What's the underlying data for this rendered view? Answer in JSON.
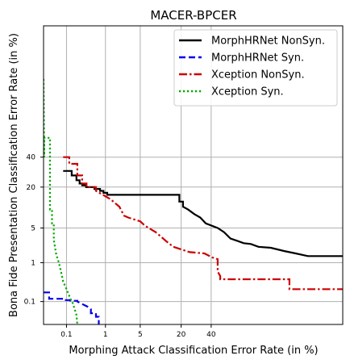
{
  "chart_data": {
    "type": "line",
    "title": "MACER-BPCER",
    "xlabel": "Morphing Attack Classification Error Rate (in %)",
    "ylabel": "Bona Fide Presentation Classification Error Rate (in %)",
    "axis_scale": "probit",
    "xlim": [
      0.02,
      99
    ],
    "ylim": [
      0.02,
      99
    ],
    "xticks": [
      0.1,
      1,
      5,
      20,
      40
    ],
    "xtick_labels": [
      "0.1",
      "1",
      "5",
      "20",
      "40"
    ],
    "yticks": [
      0.1,
      1,
      5,
      20,
      40
    ],
    "ytick_labels": [
      "0.1",
      "1",
      "5",
      "20",
      "40"
    ],
    "grid": true,
    "legend_position": "top-right",
    "series": [
      {
        "name": "MorphHRNet NonSyn.",
        "color": "#000000",
        "dash": "solid",
        "points": [
          [
            0.08,
            30
          ],
          [
            0.14,
            30
          ],
          [
            0.14,
            27
          ],
          [
            0.19,
            27
          ],
          [
            0.19,
            24
          ],
          [
            0.23,
            24
          ],
          [
            0.23,
            22
          ],
          [
            0.27,
            22
          ],
          [
            0.27,
            21
          ],
          [
            0.34,
            21
          ],
          [
            0.34,
            20
          ],
          [
            0.55,
            20
          ],
          [
            0.55,
            19
          ],
          [
            0.75,
            19
          ],
          [
            0.75,
            18
          ],
          [
            0.9,
            18
          ],
          [
            0.9,
            17
          ],
          [
            1.1,
            17
          ],
          [
            1.1,
            16
          ],
          [
            19,
            16
          ],
          [
            19,
            13
          ],
          [
            21,
            13
          ],
          [
            21,
            11
          ],
          [
            24,
            10
          ],
          [
            28,
            8.5
          ],
          [
            32,
            7.5
          ],
          [
            36,
            6
          ],
          [
            45,
            5
          ],
          [
            50,
            4.2
          ],
          [
            55,
            3.2
          ],
          [
            60,
            2.9
          ],
          [
            65,
            2.6
          ],
          [
            70,
            2.5
          ],
          [
            75,
            2.2
          ],
          [
            82,
            2.1
          ],
          [
            88,
            1.8
          ],
          [
            92,
            1.6
          ],
          [
            95,
            1.4
          ],
          [
            99,
            1.4
          ]
        ]
      },
      {
        "name": "MorphHRNet Syn.",
        "color": "#0000ee",
        "dash": "dashed",
        "points": [
          [
            0.02,
            0.18
          ],
          [
            0.03,
            0.18
          ],
          [
            0.03,
            0.12
          ],
          [
            0.08,
            0.12
          ],
          [
            0.08,
            0.11
          ],
          [
            0.13,
            0.11
          ],
          [
            0.13,
            0.105
          ],
          [
            0.2,
            0.105
          ],
          [
            0.2,
            0.1
          ],
          [
            0.3,
            0.08
          ],
          [
            0.38,
            0.07
          ],
          [
            0.45,
            0.06
          ],
          [
            0.45,
            0.045
          ],
          [
            0.6,
            0.045
          ],
          [
            0.6,
            0.035
          ],
          [
            0.7,
            0.035
          ],
          [
            0.7,
            0.02
          ]
        ]
      },
      {
        "name": "Xception NonSyn.",
        "color": "#cc0000",
        "dash": "dashdot",
        "points": [
          [
            0.08,
            40
          ],
          [
            0.12,
            40
          ],
          [
            0.12,
            35
          ],
          [
            0.2,
            35
          ],
          [
            0.2,
            27
          ],
          [
            0.27,
            27
          ],
          [
            0.27,
            22
          ],
          [
            0.35,
            22
          ],
          [
            0.35,
            20
          ],
          [
            0.6,
            20
          ],
          [
            0.6,
            18
          ],
          [
            1.3,
            14
          ],
          [
            2,
            11
          ],
          [
            2.5,
            8
          ],
          [
            3,
            7.5
          ],
          [
            5,
            6.5
          ],
          [
            6,
            5.5
          ],
          [
            9,
            4.2
          ],
          [
            11,
            3.4
          ],
          [
            13,
            2.8
          ],
          [
            16,
            2.2
          ],
          [
            25,
            1.7
          ],
          [
            35,
            1.6
          ],
          [
            41,
            1.3
          ],
          [
            45,
            1.2
          ],
          [
            45,
            0.62
          ],
          [
            47,
            0.48
          ],
          [
            47,
            0.4
          ],
          [
            90,
            0.4
          ],
          [
            90,
            0.22
          ],
          [
            99,
            0.22
          ]
        ]
      },
      {
        "name": "Xception Syn.",
        "color": "#00aa00",
        "dash": "dotted",
        "points": [
          [
            0.02,
            90
          ],
          [
            0.021,
            40
          ],
          [
            0.021,
            55
          ],
          [
            0.032,
            55
          ],
          [
            0.032,
            10
          ],
          [
            0.037,
            10
          ],
          [
            0.037,
            6
          ],
          [
            0.042,
            6
          ],
          [
            0.042,
            3
          ],
          [
            0.05,
            1.5
          ],
          [
            0.06,
            1
          ],
          [
            0.07,
            0.6
          ],
          [
            0.08,
            0.35
          ],
          [
            0.1,
            0.22
          ],
          [
            0.13,
            0.12
          ],
          [
            0.15,
            0.09
          ],
          [
            0.17,
            0.06
          ],
          [
            0.19,
            0.04
          ],
          [
            0.2,
            0.02
          ]
        ]
      }
    ]
  }
}
